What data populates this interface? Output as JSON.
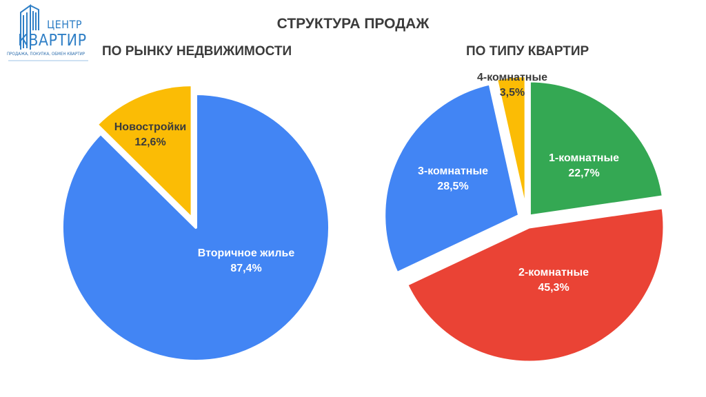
{
  "logo": {
    "word_1": "ЦЕНТР",
    "word_2": "КВАРТИР",
    "slogan": "ПРОДАЖА, ПОКУПКА, ОБМЕН КВАРТИР",
    "color": "#2f7fc6"
  },
  "title": "СТРУКТУРА ПРОДАЖ",
  "chart_data": [
    {
      "type": "pie",
      "title": "ПО РЫНКУ НЕДВИЖИМОСТИ",
      "slices": [
        {
          "label": "Вторичное жилье",
          "value": 87.4,
          "value_label": "87,4%",
          "color": "#4285f4",
          "text_color": "#ffffff"
        },
        {
          "label": "Новостройки",
          "value": 12.6,
          "value_label": "12,6%",
          "color": "#fbbc05",
          "text_color": "#3b3b3b",
          "exploded": true
        }
      ]
    },
    {
      "type": "pie",
      "title": "ПО ТИПУ КВАРТИР",
      "slices": [
        {
          "label": "1-комнатные",
          "value": 22.7,
          "value_label": "22,7%",
          "color": "#34a853",
          "text_color": "#ffffff"
        },
        {
          "label": "2-комнатные",
          "value": 45.3,
          "value_label": "45,3%",
          "color": "#ea4335",
          "text_color": "#ffffff"
        },
        {
          "label": "3-комнатные",
          "value": 28.5,
          "value_label": "28,5%",
          "color": "#4285f4",
          "text_color": "#ffffff"
        },
        {
          "label": "4-комнатные",
          "value": 3.5,
          "value_label": "3,5%",
          "color": "#fbbc05",
          "text_color": "#3b3b3b",
          "label_outside": true
        }
      ]
    }
  ]
}
